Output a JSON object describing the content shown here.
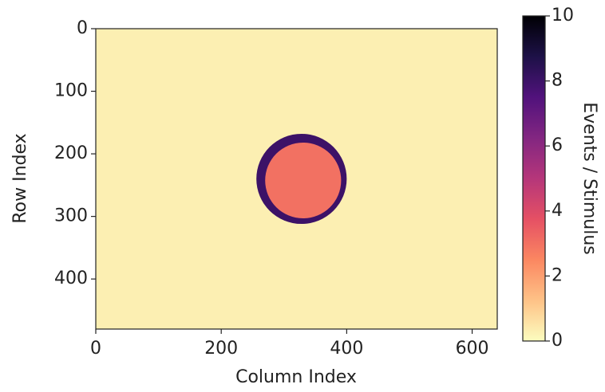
{
  "chart_data": {
    "type": "heatmap",
    "xlabel": "Column Index",
    "ylabel": "Row Index",
    "xlim": [
      0,
      640
    ],
    "xticks": [
      0,
      200,
      400,
      600
    ],
    "ylim": [
      0,
      480
    ],
    "yticks": [
      0,
      100,
      200,
      300,
      400
    ],
    "y_inverted": true,
    "colormap": "magma_r",
    "colorbar": {
      "label": "Events / Stimulus",
      "lim": [
        0,
        10
      ],
      "ticks": [
        0,
        2,
        4,
        6,
        8,
        10
      ]
    },
    "background_value": 0.3,
    "spot": {
      "center": [
        328,
        240
      ],
      "radius": 72,
      "value": 3,
      "edge_value": 8
    }
  }
}
